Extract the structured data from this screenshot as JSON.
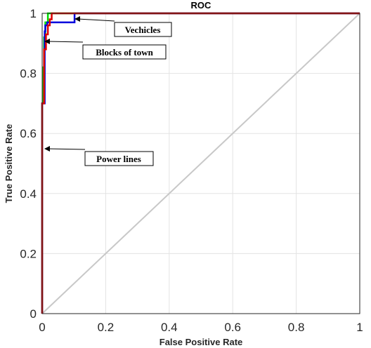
{
  "chart_data": {
    "type": "line",
    "title": "ROC",
    "xlabel": "False Positive Rate",
    "ylabel": "True Positive Rate",
    "xlim": [
      0,
      1
    ],
    "ylim": [
      0,
      1
    ],
    "xticks": [
      0,
      0.2,
      0.4,
      0.6,
      0.8,
      1
    ],
    "yticks": [
      0,
      0.2,
      0.4,
      0.6,
      0.8,
      1
    ],
    "xtick_labels": [
      "0",
      "0.2",
      "0.4",
      "0.6",
      "0.8",
      "1"
    ],
    "ytick_labels": [
      "0",
      "0.2",
      "0.4",
      "0.6",
      "0.8",
      "1"
    ],
    "grid": true,
    "series": [
      {
        "color": "#c8c8c8",
        "x": [
          0,
          1
        ],
        "y": [
          0,
          1
        ]
      },
      {
        "color": "#00dd00",
        "x": [
          0,
          0,
          0.002,
          0.002,
          0.006,
          0.006,
          0.01,
          0.01,
          0.018,
          0.018,
          1
        ],
        "y": [
          0,
          0.7,
          0.7,
          0.82,
          0.82,
          0.92,
          0.92,
          0.97,
          0.97,
          1,
          1
        ]
      },
      {
        "color": "#0000dd",
        "x": [
          0,
          0,
          0.008,
          0.008,
          0.01,
          0.01,
          0.016,
          0.016,
          0.102,
          0.102,
          1
        ],
        "y": [
          0,
          0.7,
          0.7,
          0.94,
          0.94,
          0.96,
          0.96,
          0.97,
          0.97,
          1,
          1
        ]
      },
      {
        "color": "#dd0000",
        "x": [
          0,
          0,
          0.006,
          0.006,
          0.012,
          0.012,
          0.018,
          0.018,
          0.024,
          0.024,
          0.03,
          0.03,
          1
        ],
        "y": [
          0,
          0.7,
          0.7,
          0.88,
          0.88,
          0.93,
          0.93,
          0.96,
          0.96,
          0.98,
          0.98,
          1,
          1
        ]
      }
    ],
    "annotations": [
      {
        "text": "Vechicles",
        "arrow_to": [
          0.1,
          0.97
        ]
      },
      {
        "text": "Blocks of town",
        "arrow_to": [
          0.005,
          0.905
        ]
      },
      {
        "text": "Power lines",
        "arrow_to": [
          0.005,
          0.553
        ]
      }
    ]
  }
}
